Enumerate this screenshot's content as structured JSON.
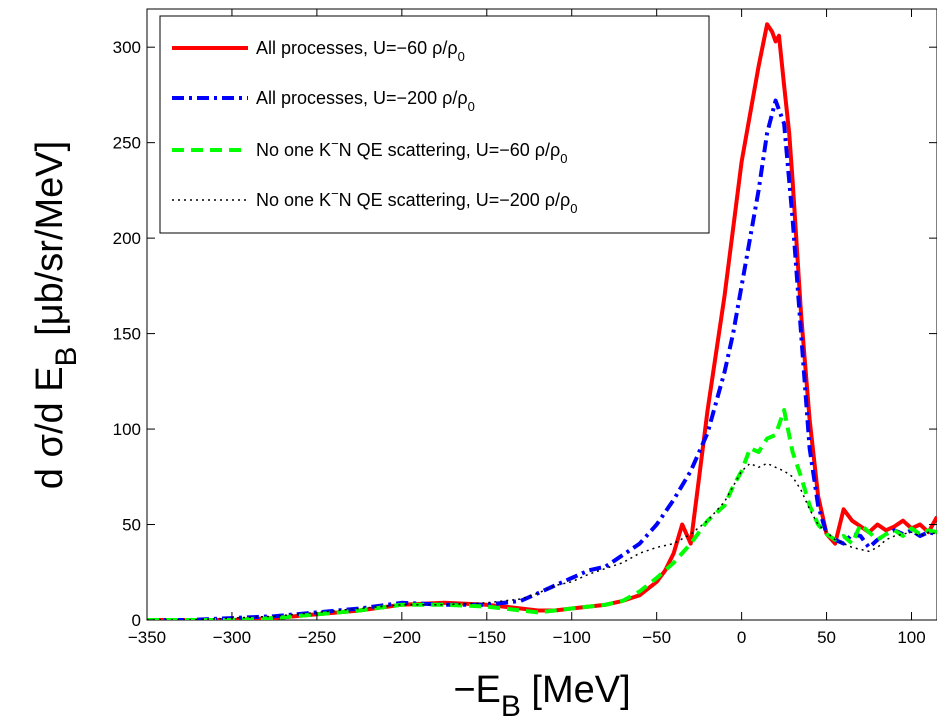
{
  "chart_data": {
    "type": "line",
    "xlabel": {
      "main": "−E",
      "sub": "B",
      "unit": " [MeV]"
    },
    "ylabel": {
      "main": "d σ/d E",
      "sub": "B",
      "unit": " [μb/sr/MeV]"
    },
    "xlim": [
      -350,
      115
    ],
    "ylim": [
      0,
      320
    ],
    "xticks": [
      -350,
      -300,
      -250,
      -200,
      -150,
      -100,
      -50,
      0,
      50,
      100
    ],
    "xtick_labels": [
      "−350",
      "−300",
      "−250",
      "−200",
      "−150",
      "−100",
      "−50",
      "0",
      "50",
      "100"
    ],
    "yticks": [
      0,
      50,
      100,
      150,
      200,
      250,
      300
    ],
    "ytick_labels": [
      "0",
      "50",
      "100",
      "150",
      "200",
      "250",
      "300"
    ],
    "grid": false,
    "legend_position": "top-left",
    "series": [
      {
        "name": "All processes,  U=−60 ρ/ρ",
        "name_sub": "0",
        "color": "#ff0000",
        "style": "solid",
        "x": [
          -350,
          -325,
          -300,
          -275,
          -250,
          -225,
          -200,
          -175,
          -150,
          -130,
          -120,
          -110,
          -100,
          -90,
          -80,
          -70,
          -60,
          -50,
          -45,
          -40,
          -35,
          -30,
          -25,
          -20,
          -15,
          -10,
          -5,
          0,
          5,
          10,
          15,
          18,
          20,
          22,
          25,
          28,
          30,
          35,
          40,
          45,
          50,
          55,
          60,
          65,
          70,
          75,
          80,
          85,
          90,
          95,
          100,
          105,
          110,
          115
        ],
        "y": [
          0,
          0,
          0,
          1,
          3,
          5,
          8,
          9,
          8,
          6,
          5,
          5,
          6,
          7,
          8,
          10,
          13,
          20,
          26,
          35,
          50,
          40,
          75,
          110,
          140,
          170,
          205,
          240,
          265,
          290,
          312,
          308,
          303,
          306,
          280,
          255,
          230,
          160,
          105,
          65,
          45,
          40,
          58,
          52,
          49,
          46,
          50,
          47,
          49,
          52,
          48,
          50,
          46,
          54
        ]
      },
      {
        "name": "All processes,  U=−200 ρ/ρ",
        "name_sub": "0",
        "color": "#0000ff",
        "style": "dashdot",
        "x": [
          -350,
          -325,
          -300,
          -275,
          -250,
          -225,
          -200,
          -175,
          -150,
          -130,
          -120,
          -110,
          -100,
          -90,
          -80,
          -70,
          -60,
          -50,
          -40,
          -30,
          -20,
          -10,
          -5,
          0,
          5,
          10,
          15,
          20,
          25,
          30,
          35,
          40,
          45,
          50,
          55,
          60,
          65,
          70,
          75,
          80,
          85,
          90,
          95,
          100,
          105,
          110,
          115
        ],
        "y": [
          0,
          0,
          1,
          2,
          4,
          6,
          9,
          8,
          8,
          10,
          14,
          18,
          22,
          26,
          28,
          34,
          40,
          50,
          63,
          78,
          98,
          130,
          150,
          175,
          200,
          225,
          255,
          272,
          260,
          210,
          150,
          90,
          60,
          45,
          42,
          40,
          45,
          44,
          38,
          42,
          45,
          47,
          45,
          47,
          44,
          46,
          45
        ]
      },
      {
        "name": "No one K N QE scattering,  U=−60 ρ/ρ",
        "name_sup": "−",
        "name_sub": "0",
        "color": "#00ff00",
        "style": "dashed",
        "x": [
          -350,
          -325,
          -300,
          -275,
          -250,
          -225,
          -200,
          -175,
          -150,
          -130,
          -120,
          -110,
          -100,
          -90,
          -80,
          -70,
          -60,
          -50,
          -40,
          -30,
          -20,
          -10,
          -5,
          0,
          5,
          10,
          15,
          20,
          25,
          30,
          35,
          40,
          45,
          50,
          55,
          60,
          65,
          70,
          75,
          80,
          85,
          90,
          95,
          100,
          105,
          110,
          115
        ],
        "y": [
          0,
          0,
          0,
          1,
          3,
          5,
          8,
          8,
          7,
          5,
          4,
          5,
          6,
          7,
          8,
          10,
          15,
          22,
          30,
          40,
          52,
          60,
          70,
          78,
          90,
          88,
          95,
          97,
          110,
          88,
          75,
          60,
          50,
          45,
          42,
          44,
          40,
          50,
          46,
          42,
          45,
          47,
          44,
          48,
          45,
          47,
          46
        ]
      },
      {
        "name": "No one K N QE scattering,  U=−200 ρ/ρ",
        "name_sup": "−",
        "name_sub": "0",
        "color": "#000000",
        "style": "dotted",
        "x": [
          -350,
          -325,
          -300,
          -275,
          -250,
          -225,
          -200,
          -175,
          -150,
          -130,
          -120,
          -110,
          -100,
          -90,
          -80,
          -70,
          -60,
          -50,
          -40,
          -30,
          -20,
          -10,
          -5,
          0,
          5,
          10,
          15,
          20,
          25,
          30,
          35,
          40,
          45,
          50,
          55,
          60,
          65,
          70,
          75,
          80,
          85,
          90,
          95,
          100,
          105,
          110,
          115
        ],
        "y": [
          0,
          0,
          1,
          2,
          4,
          6,
          8,
          8,
          9,
          11,
          14,
          18,
          20,
          24,
          27,
          30,
          35,
          38,
          40,
          45,
          52,
          62,
          70,
          78,
          82,
          80,
          82,
          80,
          78,
          75,
          68,
          58,
          50,
          46,
          42,
          40,
          38,
          37,
          36,
          38,
          42,
          44,
          45,
          46,
          44,
          46,
          45
        ]
      }
    ]
  }
}
